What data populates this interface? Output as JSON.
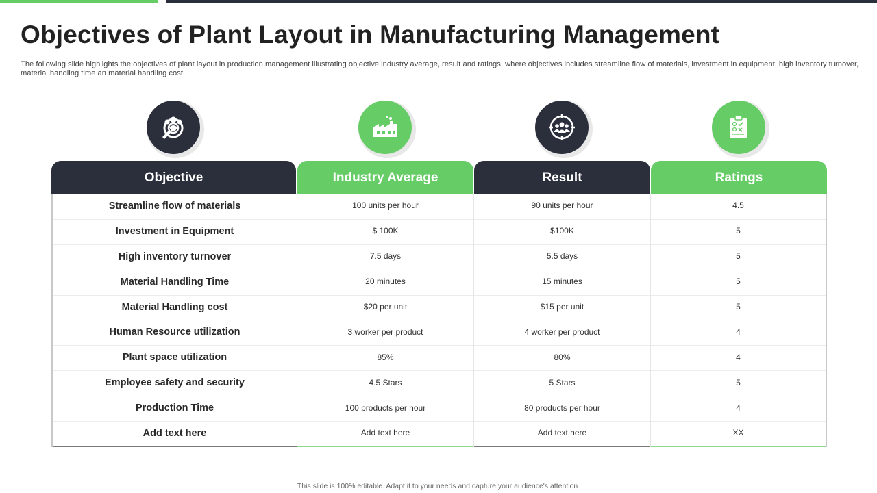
{
  "title": "Objectives of Plant Layout in Manufacturing Management",
  "subtitle": "The following slide highlights the objectives of plant layout in production management illustrating objective industry average, result and ratings, where objectives includes streamline flow of materials, investment in equipment, high inventory turnover,  material handling time an material handling cost",
  "colors": {
    "dark": "#2b2f3c",
    "green": "#66cc66"
  },
  "columns": [
    {
      "header": "Objective",
      "icon": "team-target-icon",
      "theme": "dark"
    },
    {
      "header": "Industry Average",
      "icon": "factory-icon",
      "theme": "green"
    },
    {
      "header": "Result",
      "icon": "group-target-icon",
      "theme": "dark"
    },
    {
      "header": "Ratings",
      "icon": "checklist-icon",
      "theme": "green"
    }
  ],
  "rows": [
    [
      "Streamline flow of materials",
      "100 units per hour",
      "90 units per hour",
      "4.5"
    ],
    [
      "Investment in Equipment",
      "$ 100K",
      "$100K",
      "5"
    ],
    [
      "High inventory turnover",
      "7.5 days",
      "5.5 days",
      "5"
    ],
    [
      "Material Handling Time",
      "20 minutes",
      "15 minutes",
      "5"
    ],
    [
      "Material Handling cost",
      "$20 per unit",
      "$15 per unit",
      "5"
    ],
    [
      "Human Resource utilization",
      "3 worker per product",
      "4 worker per product",
      "4"
    ],
    [
      "Plant space utilization",
      "85%",
      "80%",
      "4"
    ],
    [
      "Employee safety and security",
      "4.5 Stars",
      "5 Stars",
      "5"
    ],
    [
      "Production Time",
      "100 products per hour",
      "80 products per hour",
      "4"
    ],
    [
      "Add  text here",
      "Add text here",
      "Add text here",
      "XX"
    ]
  ],
  "footer": "This slide is 100% editable.  Adapt it to your needs and capture your audience's attention."
}
